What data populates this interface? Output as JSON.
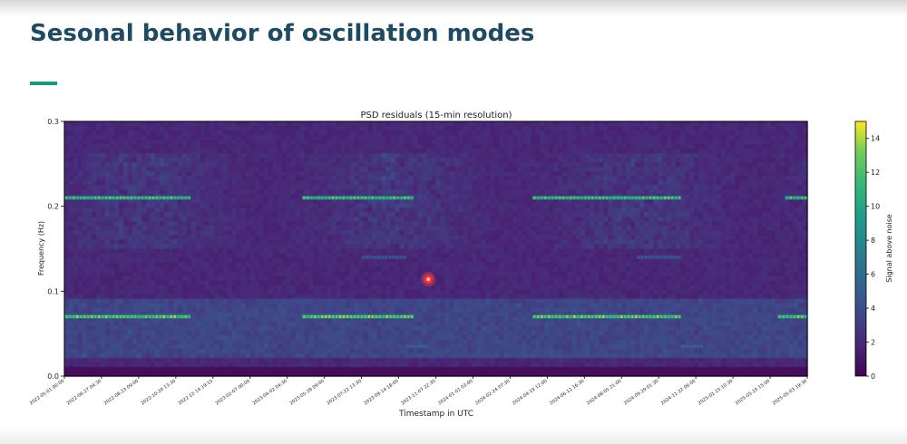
{
  "slide": {
    "title": "Sesonal behavior of oscillation modes"
  },
  "chart_data": {
    "type": "heatmap",
    "title": "PSD residuals (15-min resolution)",
    "xlabel": "Timestamp in UTC",
    "ylabel": "Frequency (Hz)",
    "colorbar_label": "Signal above noise",
    "colormap": "viridis",
    "ylim": [
      0,
      0.3
    ],
    "zlim": [
      0,
      15
    ],
    "y_ticks": [
      0.0,
      0.1,
      0.2,
      0.3
    ],
    "y_tick_labels": [
      "0.0",
      "0.1",
      "0.2",
      "0.3"
    ],
    "colorbar_ticks": [
      0,
      2,
      4,
      6,
      8,
      10,
      12,
      14
    ],
    "colorbar_tick_labels": [
      "0",
      "2",
      "4",
      "6",
      "8",
      "10",
      "12",
      "14"
    ],
    "x_tick_labels": [
      "2022-05-01 00:00",
      "2022-06-27 04:30",
      "2022-08-23 09:00",
      "2022-10-20 13:30",
      "2022-12-14 19:15",
      "2023-02-07 00:00",
      "2023-04-02 04:30",
      "2023-05-28 09:00",
      "2023-07-22 13:30",
      "2023-09-14 18:00",
      "2023-11-07 22:30",
      "2024-01-01 03:00",
      "2024-02-24 07:30",
      "2024-04-19 12:00",
      "2024-06-12 16:30",
      "2024-08-05 21:00",
      "2024-09-29 01:30",
      "2024-11-22 06:00",
      "2025-01-15 10:30",
      "2025-03-10 15:00",
      "2025-05-03 19:30"
    ],
    "bands": [
      {
        "frequency_hz": 0.21,
        "segments": [
          [
            0.0,
            0.17
          ],
          [
            0.32,
            0.47
          ],
          [
            0.63,
            0.83
          ],
          [
            0.97,
            1.0
          ]
        ],
        "level": 13
      },
      {
        "frequency_hz": 0.07,
        "segments": [
          [
            0.0,
            0.17
          ],
          [
            0.32,
            0.47
          ],
          [
            0.63,
            0.83
          ],
          [
            0.96,
            1.0
          ]
        ],
        "level": 14
      },
      {
        "frequency_hz": 0.14,
        "segments": [
          [
            0.4,
            0.46
          ],
          [
            0.77,
            0.83
          ]
        ],
        "level": 5
      },
      {
        "frequency_hz": 0.035,
        "segments": [
          [
            0.46,
            0.49
          ],
          [
            0.83,
            0.86
          ]
        ],
        "level": 6
      }
    ],
    "grid": false
  },
  "annotations": {
    "pointer_marker": {
      "x_fraction": 0.49,
      "y_hz": 0.114
    }
  }
}
